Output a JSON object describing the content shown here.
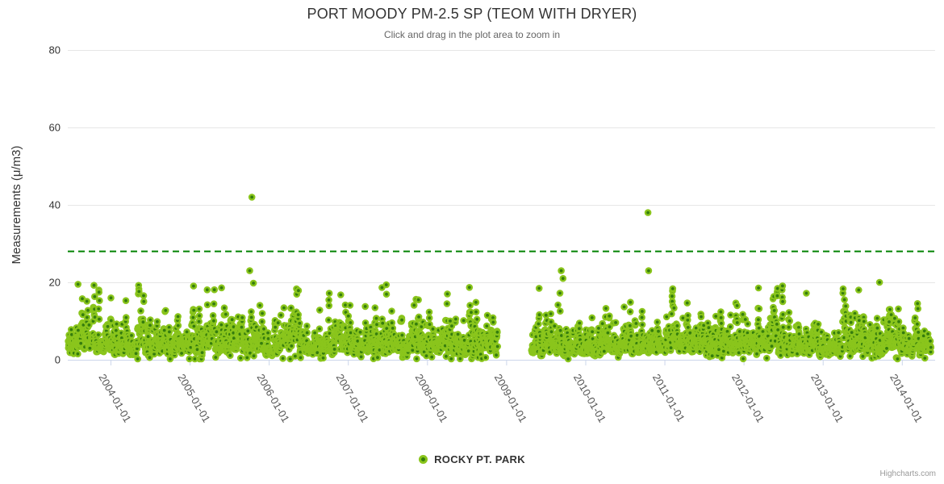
{
  "credits": {
    "label": "Highcharts.com"
  },
  "chart_data": {
    "type": "scatter",
    "title": "PORT MOODY PM-2.5 SP (TEOM WITH DRYER)",
    "subtitle": "Click and drag in the plot area to zoom in",
    "ylabel": "Measurements (μ/m3)",
    "legend_position": "bottom-center",
    "grid": "horizontal-only",
    "x_axis": {
      "type": "datetime",
      "ticks": [
        "2004-01-01",
        "2005-01-01",
        "2006-01-01",
        "2007-01-01",
        "2008-01-01",
        "2009-01-01",
        "2010-01-01",
        "2011-01-01",
        "2012-01-01",
        "2013-01-01",
        "2014-01-01"
      ],
      "range_yearfrac": [
        2003.46,
        2014.42
      ],
      "label_rotation_deg": 60,
      "tick_length": 7
    },
    "y_axis": {
      "ticks": [
        0,
        20,
        40,
        60,
        80
      ],
      "range": [
        0,
        80
      ]
    },
    "threshold_line": {
      "value": 28,
      "color": "#028202",
      "dash": [
        8,
        5
      ],
      "width": 2
    },
    "series": [
      {
        "name": "ROCKY PT. PARK",
        "type": "scatter",
        "marker": {
          "fill": "#357d0d",
          "stroke": "#8ac51c",
          "radius": 4.3
        },
        "sampling": "daily",
        "segments": [
          {
            "start": "2003-06-20",
            "end": "2008-11-22",
            "value_median": 4.3,
            "value_typical_range": [
              0.2,
              19.4
            ]
          },
          {
            "start": "2009-04-28",
            "end": "2014-05-15",
            "value_median": 4.3,
            "value_typical_range": [
              0.2,
              19.4
            ]
          }
        ],
        "notable_points": [
          {
            "date": "2003-08-04",
            "value": 19.5
          },
          {
            "date": "2005-10-05",
            "value": 23
          },
          {
            "date": "2005-10-15",
            "value": 42
          },
          {
            "date": "2005-10-22",
            "value": 19.8
          },
          {
            "date": "2009-09-12",
            "value": 23
          },
          {
            "date": "2009-09-20",
            "value": 21
          },
          {
            "date": "2010-10-17",
            "value": 38
          },
          {
            "date": "2010-10-20",
            "value": 23
          },
          {
            "date": "2013-09-20",
            "value": 20
          }
        ],
        "generation": {
          "seed": 1337,
          "ar_coeff": 0.72,
          "noise_sigma": 0.62,
          "log_mu": 1.45,
          "log_sigma_scale": 0.62,
          "skip_prob": 0.06,
          "low_dip_prob": 0.015,
          "clamp": [
            0.2,
            19.4
          ]
        }
      }
    ],
    "colors": {
      "grid": "#e6e6e6",
      "axis_line": "#ccd6eb",
      "title": "#333333",
      "subtitle": "#666666",
      "tick_label": "#333333",
      "x_label": "#555555",
      "credits": "#999999"
    }
  }
}
